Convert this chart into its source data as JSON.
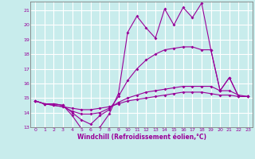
{
  "xlabel": "Windchill (Refroidissement éolien,°C)",
  "bg_color": "#c8ecec",
  "grid_color": "#ffffff",
  "line_color": "#990099",
  "xlim": [
    -0.5,
    23.5
  ],
  "ylim": [
    13,
    21.6
  ],
  "xticks": [
    0,
    1,
    2,
    3,
    4,
    5,
    6,
    7,
    8,
    9,
    10,
    11,
    12,
    13,
    14,
    15,
    16,
    17,
    18,
    19,
    20,
    21,
    22,
    23
  ],
  "yticks": [
    13,
    14,
    15,
    16,
    17,
    18,
    19,
    20,
    21
  ],
  "line1_x": [
    0,
    1,
    2,
    3,
    4,
    5,
    6,
    7,
    8,
    9,
    10,
    11,
    12,
    13,
    14,
    15,
    16,
    17,
    18,
    19,
    20,
    21,
    22,
    23
  ],
  "line1_y": [
    14.8,
    14.6,
    14.6,
    14.5,
    13.8,
    12.9,
    12.8,
    13.0,
    13.9,
    15.3,
    19.5,
    20.6,
    19.8,
    19.1,
    21.1,
    20.0,
    21.2,
    20.5,
    21.5,
    18.3,
    15.5,
    16.4,
    15.1,
    15.1
  ],
  "line2_x": [
    0,
    1,
    2,
    3,
    4,
    5,
    6,
    7,
    8,
    9,
    10,
    11,
    12,
    13,
    14,
    15,
    16,
    17,
    18,
    19,
    20,
    21,
    22,
    23
  ],
  "line2_y": [
    14.8,
    14.6,
    14.6,
    14.5,
    14.0,
    13.5,
    13.2,
    13.8,
    14.2,
    15.1,
    16.2,
    17.0,
    17.6,
    18.0,
    18.3,
    18.4,
    18.5,
    18.5,
    18.3,
    18.3,
    15.5,
    16.4,
    15.1,
    15.1
  ],
  "line3_x": [
    0,
    1,
    2,
    3,
    4,
    5,
    6,
    7,
    8,
    9,
    10,
    11,
    12,
    13,
    14,
    15,
    16,
    17,
    18,
    19,
    20,
    21,
    22,
    23
  ],
  "line3_y": [
    14.8,
    14.6,
    14.5,
    14.4,
    14.1,
    13.9,
    13.9,
    14.0,
    14.3,
    14.7,
    15.0,
    15.2,
    15.4,
    15.5,
    15.6,
    15.7,
    15.8,
    15.8,
    15.8,
    15.8,
    15.5,
    15.5,
    15.2,
    15.1
  ],
  "line4_x": [
    0,
    1,
    2,
    3,
    4,
    5,
    6,
    7,
    8,
    9,
    10,
    11,
    12,
    13,
    14,
    15,
    16,
    17,
    18,
    19,
    20,
    21,
    22,
    23
  ],
  "line4_y": [
    14.8,
    14.6,
    14.5,
    14.4,
    14.3,
    14.2,
    14.2,
    14.3,
    14.4,
    14.6,
    14.8,
    14.9,
    15.0,
    15.1,
    15.2,
    15.3,
    15.4,
    15.4,
    15.4,
    15.3,
    15.2,
    15.2,
    15.1,
    15.1
  ]
}
